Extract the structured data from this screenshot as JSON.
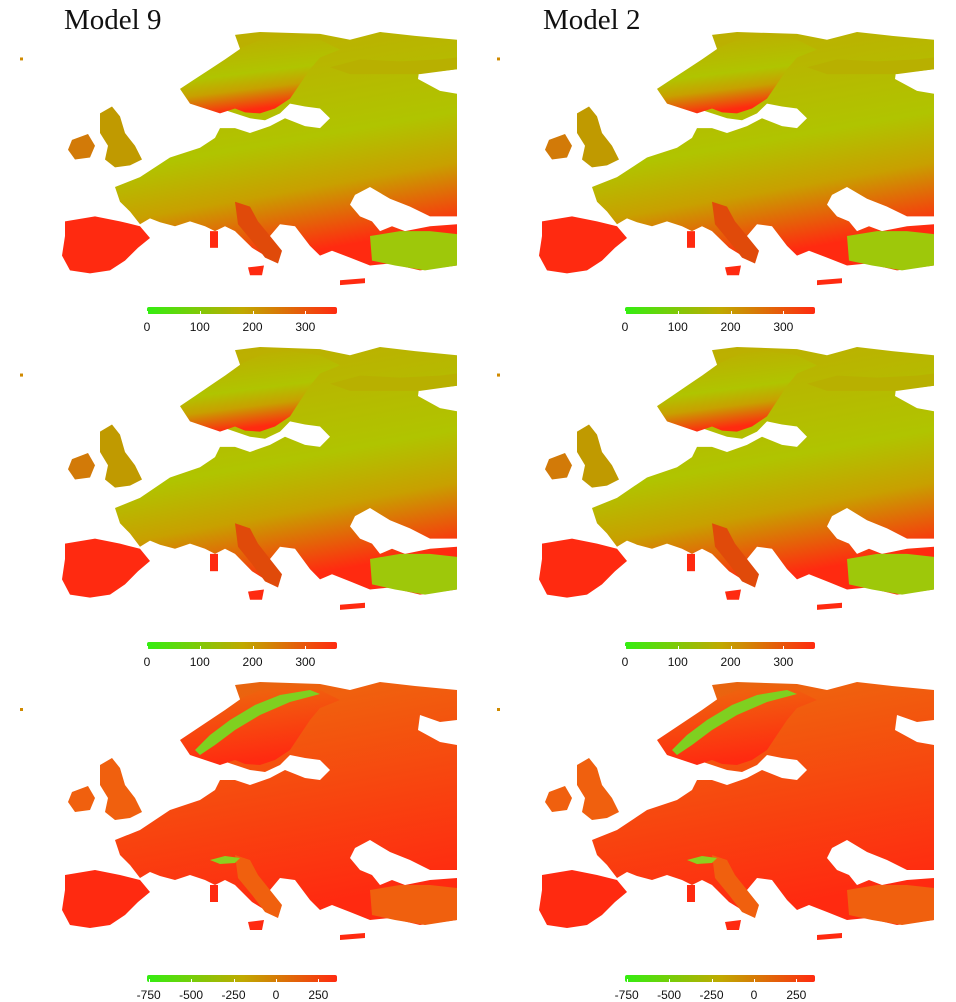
{
  "columns": [
    {
      "title": "Model 9"
    },
    {
      "title": "Model 2"
    }
  ],
  "rows": [
    {
      "colorbar": {
        "min": 0,
        "max": 360,
        "ticks": [
          "0",
          "100",
          "200",
          "300"
        ],
        "tick_values": [
          0,
          100,
          200,
          300
        ]
      },
      "fill_level": 0.55
    },
    {
      "colorbar": {
        "min": 0,
        "max": 360,
        "ticks": [
          "0",
          "100",
          "200",
          "300"
        ],
        "tick_values": [
          0,
          100,
          200,
          300
        ]
      },
      "fill_level": 0.52
    },
    {
      "colorbar": {
        "min": -760,
        "max": 360,
        "ticks": [
          "-750",
          "-500",
          "-250",
          "0",
          "250"
        ],
        "tick_values": [
          -750,
          -500,
          -250,
          0,
          250
        ]
      },
      "fill_level": 0.86
    }
  ],
  "colors": {
    "low": "#33ee11",
    "mid": "#bfaa00",
    "high": "#ff2a10",
    "land_row3": "#f0600e"
  }
}
